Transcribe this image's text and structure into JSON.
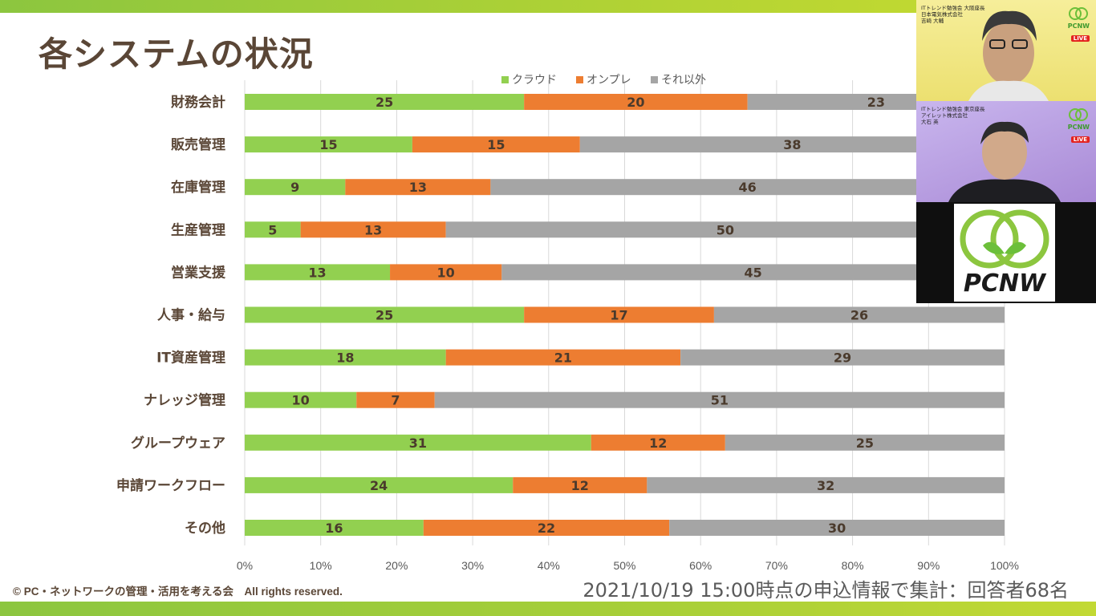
{
  "slide": {
    "title": "各システムの状況",
    "copyright": "© PC・ネットワークの管理・活用を考える会　All rights reserved.",
    "footnote": "2021/10/19 15:00時点の申込情報で集計：回答者68名"
  },
  "colors": {
    "cloud": "#92d050",
    "onprem": "#ed7d31",
    "other": "#a5a5a5",
    "label": "#5a4636",
    "accent": "#8cc63f"
  },
  "chart_data": {
    "type": "bar",
    "orientation": "horizontal",
    "stacked": "percent",
    "categories": [
      "財務会計",
      "販売管理",
      "在庫管理",
      "生産管理",
      "営業支援",
      "人事・給与",
      "IT資産管理",
      "ナレッジ管理",
      "グループウェア",
      "申請ワークフロー",
      "その他"
    ],
    "series": [
      {
        "name": "クラウド",
        "values": [
          25,
          15,
          9,
          5,
          13,
          25,
          18,
          10,
          31,
          24,
          16
        ]
      },
      {
        "name": "オンプレ",
        "values": [
          20,
          15,
          13,
          13,
          10,
          17,
          21,
          7,
          12,
          12,
          22
        ]
      },
      {
        "name": "それ以外",
        "values": [
          23,
          38,
          46,
          50,
          45,
          26,
          29,
          51,
          25,
          32,
          30
        ]
      }
    ],
    "xticks": [
      "0%",
      "10%",
      "20%",
      "30%",
      "40%",
      "50%",
      "60%",
      "70%",
      "80%",
      "90%",
      "100%"
    ],
    "xlim": [
      0,
      100
    ],
    "grid": true,
    "legend": "top-center"
  },
  "video": {
    "speaker1": [
      "ITトレンド勉強会 大阪座長",
      "日本電気株式会社",
      "吉崎 大輔"
    ],
    "speaker2": [
      "ITトレンド勉強会 東京座長",
      "アイレット株式会社",
      "大石 英"
    ],
    "brand": "PCNW",
    "live": "LIVE"
  }
}
